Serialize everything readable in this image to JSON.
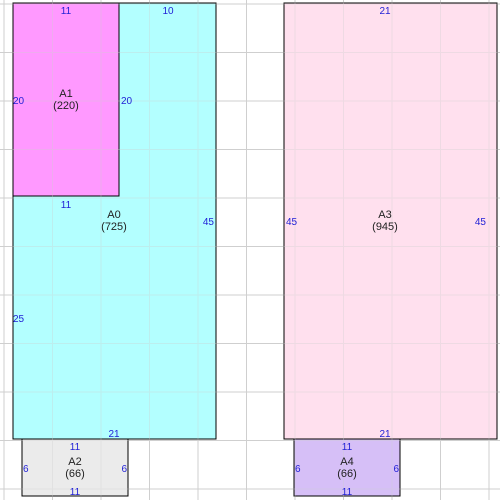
{
  "palette": {
    "grid": "#cfcfcf",
    "dim_text": "#1f1fd6",
    "name_text": "#222222",
    "border": "#000000"
  },
  "regions": [
    {
      "id": "A0",
      "name": "A0",
      "area": "(725)",
      "fill": "#b3ffff",
      "dims": {
        "top": "10",
        "left": "25",
        "right": "45",
        "bottom": "21"
      }
    },
    {
      "id": "A1",
      "name": "A1",
      "area": "(220)",
      "fill": "#ff99ff",
      "dims": {
        "top": "11",
        "left": "20",
        "right": "20",
        "bottom": "11"
      }
    },
    {
      "id": "A2",
      "name": "A2",
      "area": "(66)",
      "fill": "#ebebeb",
      "dims": {
        "top": "11",
        "left": "6",
        "right": "6",
        "bottom": "11"
      }
    },
    {
      "id": "A3",
      "name": "A3",
      "area": "(945)",
      "fill": "#ffe0ee",
      "dims": {
        "top": "21",
        "left": "45",
        "right": "45",
        "bottom": "21"
      }
    },
    {
      "id": "A4",
      "name": "A4",
      "area": "(66)",
      "fill": "#d6bff7",
      "dims": {
        "top": "11",
        "left": "6",
        "right": "6",
        "bottom": "11"
      }
    }
  ]
}
